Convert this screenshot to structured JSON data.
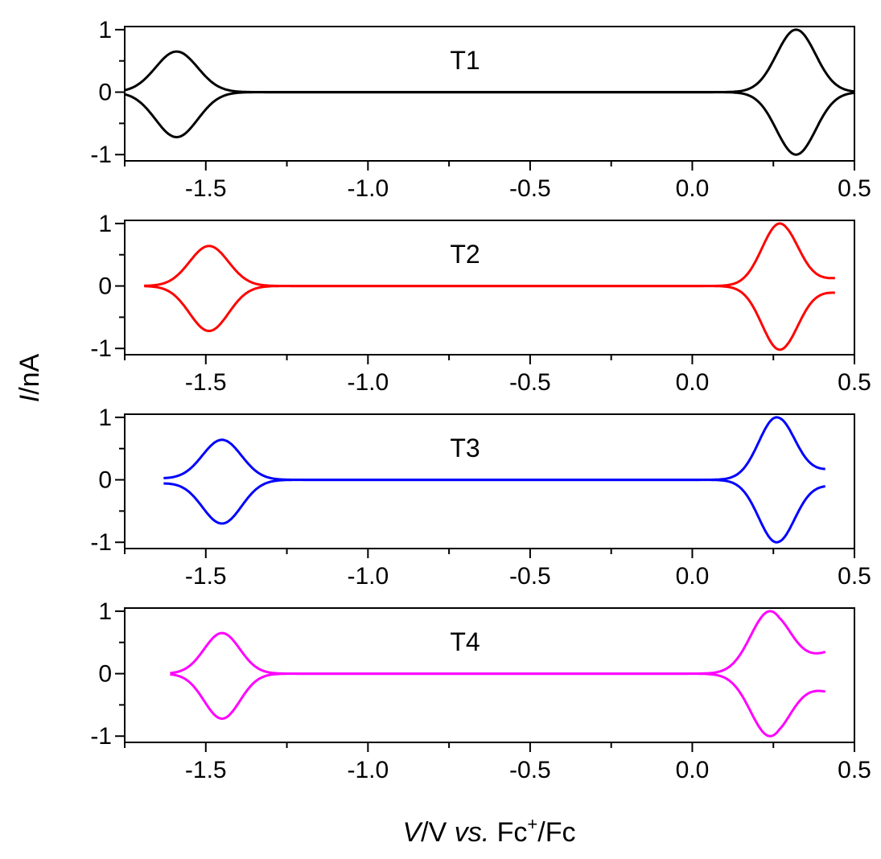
{
  "figure": {
    "ylabel_italic": "I",
    "ylabel_rest": "/nA",
    "xlabel_italic_v": "V",
    "xlabel_mid": "/V ",
    "xlabel_italic_vs": "vs.",
    "xlabel_fc": " Fc",
    "xlabel_sup": "+",
    "xlabel_end": "/Fc"
  },
  "chart_data": [
    {
      "type": "line",
      "panel_label": "T1",
      "color": "#000000",
      "xlim": [
        -1.75,
        0.5
      ],
      "ylim": [
        -1.1,
        1.05
      ],
      "xticks": [
        -1.5,
        -1.0,
        -0.5,
        0.0,
        0.5
      ],
      "xtick_labels": [
        "-1.5",
        "-1.0",
        "-0.5",
        "0.0",
        "0.5"
      ],
      "yticks": [
        1,
        0,
        -1
      ],
      "ytick_labels": [
        "1",
        "0",
        "-1"
      ],
      "x_range": [
        -1.75,
        0.5
      ],
      "peaks": [
        {
          "center": -1.59,
          "width": 0.065,
          "amp_up": 0.65,
          "amp_down": -0.72
        },
        {
          "center": 0.32,
          "width": 0.06,
          "amp_up": 1.0,
          "amp_down": -1.0
        }
      ],
      "upper_end": [
        0,
        0
      ],
      "lower_end": [
        0,
        0
      ]
    },
    {
      "type": "line",
      "panel_label": "T2",
      "color": "#ff0000",
      "xlim": [
        -1.75,
        0.5
      ],
      "ylim": [
        -1.1,
        1.05
      ],
      "xticks": [
        -1.5,
        -1.0,
        -0.5,
        0.0,
        0.5
      ],
      "xtick_labels": [
        "-1.5",
        "-1.0",
        "-0.5",
        "0.0",
        "0.5"
      ],
      "yticks": [
        1,
        0,
        -1
      ],
      "ytick_labels": [
        "1",
        "0",
        "-1"
      ],
      "x_range": [
        -1.69,
        0.44
      ],
      "peaks": [
        {
          "center": -1.49,
          "width": 0.06,
          "amp_up": 0.64,
          "amp_down": -0.72
        },
        {
          "center": 0.27,
          "width": 0.055,
          "amp_up": 1.0,
          "amp_down": -1.02
        }
      ],
      "upper_end": [
        0,
        0.12
      ],
      "lower_end": [
        0,
        -0.1
      ]
    },
    {
      "type": "line",
      "panel_label": "T3",
      "color": "#0000ff",
      "xlim": [
        -1.75,
        0.5
      ],
      "ylim": [
        -1.1,
        1.05
      ],
      "xticks": [
        -1.5,
        -1.0,
        -0.5,
        0.0,
        0.5
      ],
      "xtick_labels": [
        "-1.5",
        "-1.0",
        "-0.5",
        "0.0",
        "0.5"
      ],
      "yticks": [
        1,
        0,
        -1
      ],
      "ytick_labels": [
        "1",
        "0",
        "-1"
      ],
      "x_range": [
        -1.63,
        0.41
      ],
      "peaks": [
        {
          "center": -1.45,
          "width": 0.06,
          "amp_up": 0.64,
          "amp_down": -0.7
        },
        {
          "center": 0.26,
          "width": 0.055,
          "amp_up": 1.0,
          "amp_down": -1.0
        }
      ],
      "upper_end": [
        0.02,
        0.15
      ],
      "lower_end": [
        -0.05,
        -0.08
      ]
    },
    {
      "type": "line",
      "panel_label": "T4",
      "color": "#ff00ff",
      "xlim": [
        -1.75,
        0.5
      ],
      "ylim": [
        -1.1,
        1.05
      ],
      "xticks": [
        -1.5,
        -1.0,
        -0.5,
        0.0,
        0.5
      ],
      "xtick_labels": [
        "-1.5",
        "-1.0",
        "-0.5",
        "0.0",
        "0.5"
      ],
      "yticks": [
        1,
        0,
        -1
      ],
      "ytick_labels": [
        "1",
        "0",
        "-1"
      ],
      "x_range": [
        -1.61,
        0.41
      ],
      "peaks": [
        {
          "center": -1.45,
          "width": 0.055,
          "amp_up": 0.65,
          "amp_down": -0.72
        },
        {
          "center": 0.24,
          "width": 0.06,
          "amp_up": 1.0,
          "amp_down": -1.0
        }
      ],
      "upper_end": [
        0,
        0.33
      ],
      "lower_end": [
        0,
        -0.27
      ]
    }
  ]
}
